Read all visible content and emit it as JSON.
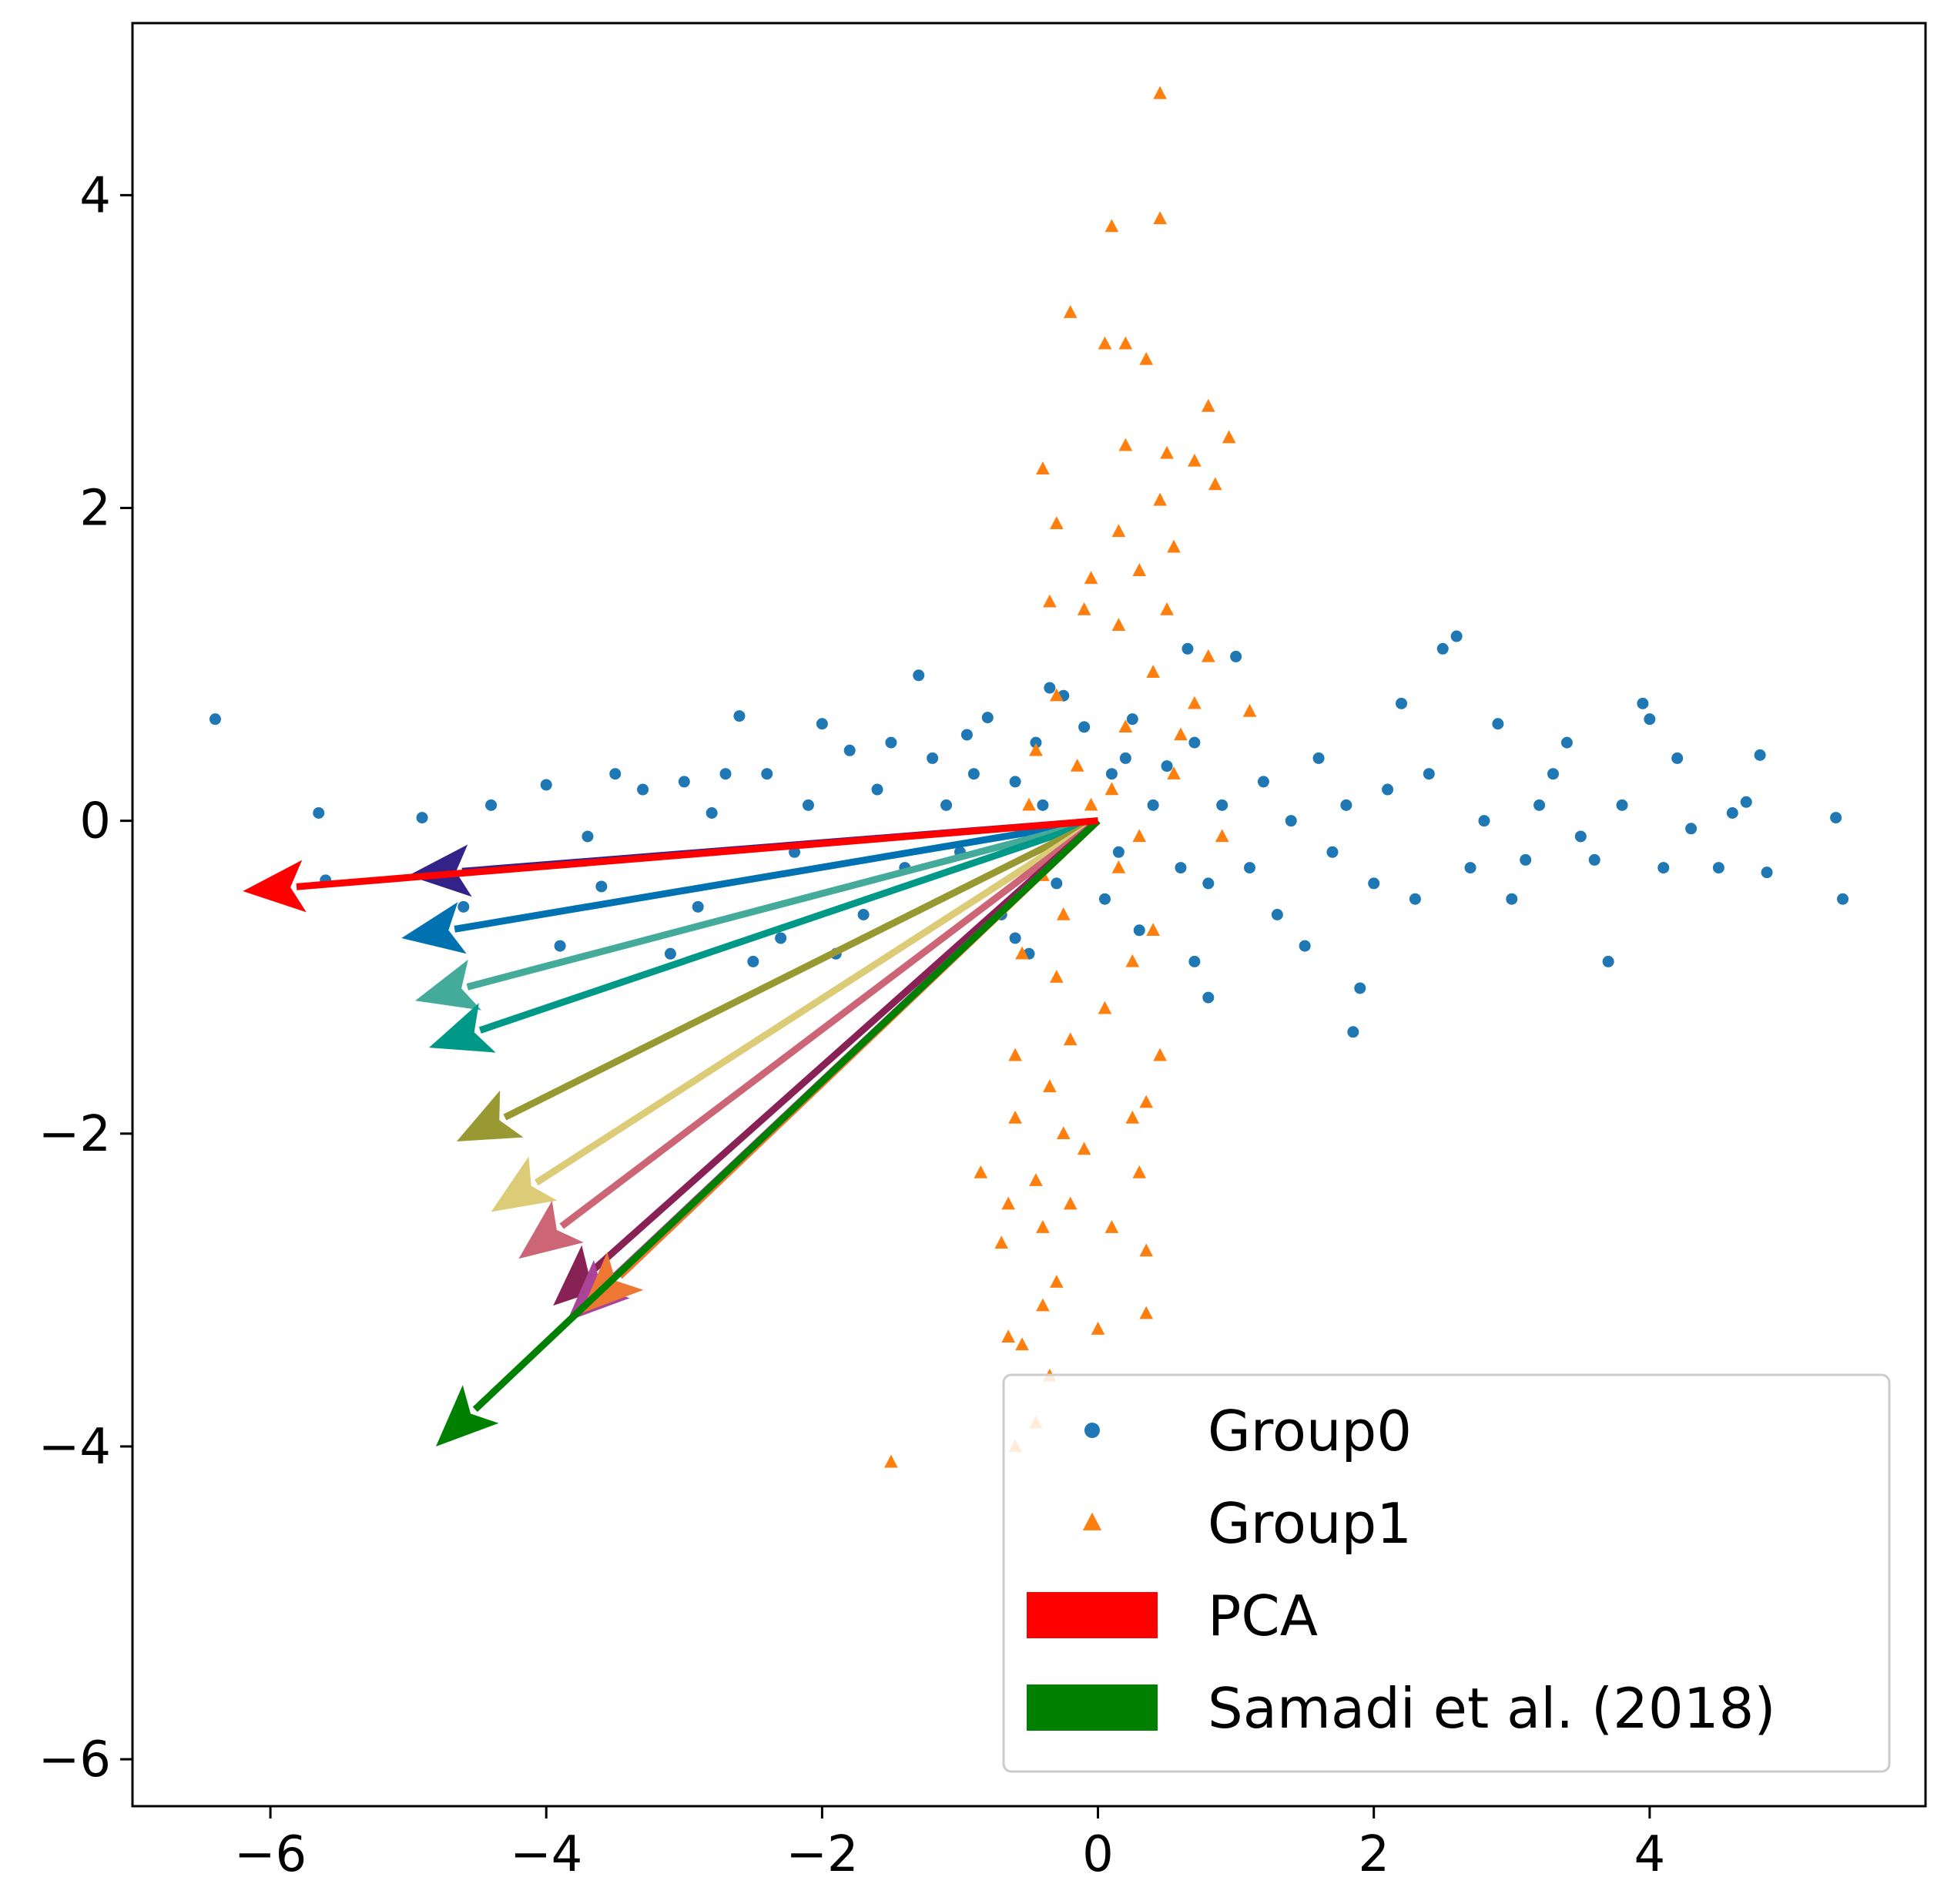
{
  "chart_data": {
    "type": "scatter",
    "title": "",
    "xlabel": "",
    "ylabel": "",
    "xlim": [
      -7.0,
      6.0
    ],
    "ylim": [
      -6.3,
      5.1
    ],
    "xticks": [
      -6,
      -4,
      -2,
      0,
      2,
      4
    ],
    "xtick_labels": [
      "−6",
      "−4",
      "−2",
      "0",
      "2",
      "4"
    ],
    "yticks": [
      -6,
      -4,
      -2,
      0,
      2,
      4
    ],
    "ytick_labels": [
      "−6",
      "−4",
      "−2",
      "0",
      "2",
      "4"
    ],
    "grid": false,
    "legend_position": "lower-right",
    "series": [
      {
        "name": "Group0",
        "kind": "scatter",
        "marker": "circle",
        "color": "#1f77b4",
        "points": [
          [
            -6.4,
            0.65
          ],
          [
            -5.65,
            0.05
          ],
          [
            -4.9,
            0.02
          ],
          [
            -4.4,
            0.1
          ],
          [
            -4.0,
            0.23
          ],
          [
            -5.6,
            -0.38
          ],
          [
            -4.6,
            -0.55
          ],
          [
            -3.6,
            -0.42
          ],
          [
            -3.3,
            0.2
          ],
          [
            -3.0,
            0.25
          ],
          [
            -2.8,
            0.05
          ],
          [
            -2.6,
            0.67
          ],
          [
            -2.4,
            0.3
          ],
          [
            -2.2,
            -0.2
          ],
          [
            -2.0,
            0.62
          ],
          [
            -1.8,
            0.45
          ],
          [
            -1.6,
            0.2
          ],
          [
            -1.4,
            -0.3
          ],
          [
            -1.3,
            0.93
          ],
          [
            -1.2,
            0.4
          ],
          [
            -1.1,
            0.1
          ],
          [
            -1.0,
            -0.2
          ],
          [
            -0.9,
            0.3
          ],
          [
            -0.8,
            0.66
          ],
          [
            -0.7,
            -0.6
          ],
          [
            -0.6,
            0.25
          ],
          [
            -0.5,
            -0.85
          ],
          [
            -0.45,
            0.5
          ],
          [
            -0.4,
            0.1
          ],
          [
            -0.3,
            -0.4
          ],
          [
            -0.25,
            0.8
          ],
          [
            -0.2,
            -0.1
          ],
          [
            -0.1,
            0.6
          ],
          [
            0.05,
            -0.5
          ],
          [
            0.1,
            0.3
          ],
          [
            0.15,
            -0.2
          ],
          [
            0.2,
            0.4
          ],
          [
            0.3,
            -0.7
          ],
          [
            0.4,
            0.1
          ],
          [
            0.5,
            0.35
          ],
          [
            0.6,
            -0.3
          ],
          [
            0.65,
            1.1
          ],
          [
            0.7,
            0.5
          ],
          [
            0.8,
            -0.4
          ],
          [
            0.9,
            0.1
          ],
          [
            1.0,
            1.05
          ],
          [
            1.1,
            -0.3
          ],
          [
            1.2,
            0.25
          ],
          [
            1.3,
            -0.6
          ],
          [
            1.4,
            0.0
          ],
          [
            1.5,
            -0.8
          ],
          [
            1.6,
            0.4
          ],
          [
            1.7,
            -0.2
          ],
          [
            1.8,
            0.1
          ],
          [
            1.85,
            -1.35
          ],
          [
            1.9,
            -1.07
          ],
          [
            2.0,
            -0.4
          ],
          [
            2.1,
            0.2
          ],
          [
            2.2,
            0.75
          ],
          [
            2.3,
            -0.5
          ],
          [
            2.4,
            0.3
          ],
          [
            2.5,
            1.1
          ],
          [
            2.6,
            1.18
          ],
          [
            2.7,
            -0.3
          ],
          [
            2.8,
            0.0
          ],
          [
            2.9,
            0.62
          ],
          [
            3.0,
            -0.5
          ],
          [
            3.1,
            -0.25
          ],
          [
            3.2,
            0.1
          ],
          [
            3.3,
            0.3
          ],
          [
            3.4,
            0.5
          ],
          [
            3.5,
            -0.1
          ],
          [
            3.6,
            -0.25
          ],
          [
            3.7,
            -0.9
          ],
          [
            3.8,
            0.1
          ],
          [
            3.95,
            0.75
          ],
          [
            4.0,
            0.65
          ],
          [
            4.1,
            -0.3
          ],
          [
            4.2,
            0.4
          ],
          [
            4.3,
            -0.05
          ],
          [
            4.5,
            -0.3
          ],
          [
            4.6,
            0.05
          ],
          [
            4.7,
            0.12
          ],
          [
            4.8,
            0.42
          ],
          [
            4.85,
            -0.33
          ],
          [
            5.35,
            0.02
          ],
          [
            5.4,
            -0.5
          ],
          [
            -3.9,
            -0.8
          ],
          [
            -3.1,
            -0.85
          ],
          [
            -2.5,
            -0.9
          ],
          [
            -2.3,
            -0.75
          ],
          [
            -1.9,
            -0.85
          ],
          [
            -1.7,
            -0.6
          ],
          [
            -0.6,
            -0.75
          ],
          [
            0.7,
            -0.9
          ],
          [
            0.8,
            -1.13
          ],
          [
            -3.7,
            -0.1
          ],
          [
            -3.5,
            0.3
          ],
          [
            -2.9,
            -0.55
          ],
          [
            -2.7,
            0.3
          ],
          [
            -2.1,
            0.1
          ],
          [
            -1.5,
            0.5
          ],
          [
            -0.95,
            0.55
          ],
          [
            -0.35,
            0.85
          ],
          [
            0.25,
            0.65
          ]
        ]
      },
      {
        "name": "Group1",
        "kind": "scatter",
        "marker": "triangle",
        "color": "#ff7f0e",
        "points": [
          [
            0.45,
            4.65
          ],
          [
            0.1,
            3.8
          ],
          [
            0.45,
            3.85
          ],
          [
            -0.2,
            3.25
          ],
          [
            0.05,
            3.05
          ],
          [
            0.2,
            3.05
          ],
          [
            0.35,
            2.95
          ],
          [
            0.8,
            2.65
          ],
          [
            0.95,
            2.45
          ],
          [
            0.2,
            2.4
          ],
          [
            -0.4,
            2.25
          ],
          [
            0.5,
            2.35
          ],
          [
            0.7,
            2.3
          ],
          [
            0.85,
            2.15
          ],
          [
            0.45,
            2.05
          ],
          [
            0.15,
            1.85
          ],
          [
            -0.3,
            1.9
          ],
          [
            0.55,
            1.75
          ],
          [
            -0.05,
            1.55
          ],
          [
            0.3,
            1.6
          ],
          [
            -0.35,
            1.4
          ],
          [
            -0.1,
            1.35
          ],
          [
            0.5,
            1.35
          ],
          [
            0.15,
            1.25
          ],
          [
            0.8,
            1.05
          ],
          [
            0.4,
            0.95
          ],
          [
            -0.3,
            0.8
          ],
          [
            0.7,
            0.75
          ],
          [
            1.1,
            0.7
          ],
          [
            0.2,
            0.6
          ],
          [
            -0.45,
            0.45
          ],
          [
            0.55,
            0.3
          ],
          [
            -0.5,
            0.1
          ],
          [
            0.3,
            -0.1
          ],
          [
            0.15,
            -0.3
          ],
          [
            -0.25,
            -0.6
          ],
          [
            0.4,
            -0.7
          ],
          [
            -0.55,
            -0.85
          ],
          [
            0.25,
            -0.9
          ],
          [
            -0.3,
            -1.0
          ],
          [
            0.05,
            -1.2
          ],
          [
            -0.2,
            -1.4
          ],
          [
            0.45,
            -1.5
          ],
          [
            -0.6,
            -1.5
          ],
          [
            -0.35,
            -1.7
          ],
          [
            0.35,
            -1.8
          ],
          [
            -0.6,
            -1.9
          ],
          [
            -0.25,
            -2.0
          ],
          [
            0.25,
            -1.9
          ],
          [
            -0.1,
            -2.1
          ],
          [
            -0.85,
            -2.25
          ],
          [
            0.3,
            -2.25
          ],
          [
            -0.45,
            -2.3
          ],
          [
            -0.65,
            -2.45
          ],
          [
            -0.2,
            -2.45
          ],
          [
            -0.4,
            -2.6
          ],
          [
            -0.7,
            -2.7
          ],
          [
            0.35,
            -2.75
          ],
          [
            0.1,
            -2.6
          ],
          [
            -0.3,
            -2.95
          ],
          [
            -0.4,
            -3.1
          ],
          [
            0.35,
            -3.15
          ],
          [
            0.0,
            -3.25
          ],
          [
            -0.65,
            -3.3
          ],
          [
            -0.55,
            -3.35
          ],
          [
            -0.35,
            -3.55
          ],
          [
            -0.45,
            -3.85
          ],
          [
            -0.6,
            -4.0
          ],
          [
            -1.5,
            -4.1
          ],
          [
            0.1,
            0.2
          ],
          [
            -0.15,
            0.35
          ],
          [
            0.6,
            0.55
          ],
          [
            -0.05,
            0.1
          ],
          [
            0.9,
            -0.1
          ],
          [
            -0.4,
            -0.35
          ]
        ]
      },
      {
        "name": "PCA",
        "kind": "arrow",
        "color": "#ff0000",
        "vector": [
          -6.2,
          -0.45
        ]
      },
      {
        "name": "Samadi et al. (2018)",
        "kind": "arrow",
        "color": "#008000",
        "vector": [
          -4.8,
          -4.0
        ]
      },
      {
        "name": "",
        "kind": "arrow",
        "color": "#332288",
        "vector": [
          -5.0,
          -0.35
        ]
      },
      {
        "name": "",
        "kind": "arrow",
        "color": "#0072b2",
        "vector": [
          -5.05,
          -0.75
        ]
      },
      {
        "name": "",
        "kind": "arrow",
        "color": "#44aa99",
        "vector": [
          -4.95,
          -1.15
        ]
      },
      {
        "name": "",
        "kind": "arrow",
        "color": "#009988",
        "vector": [
          -4.85,
          -1.45
        ]
      },
      {
        "name": "",
        "kind": "arrow",
        "color": "#999933",
        "vector": [
          -4.65,
          -2.05
        ]
      },
      {
        "name": "",
        "kind": "arrow",
        "color": "#ddcc77",
        "vector": [
          -4.4,
          -2.5
        ]
      },
      {
        "name": "",
        "kind": "arrow",
        "color": "#cc6677",
        "vector": [
          -4.2,
          -2.8
        ]
      },
      {
        "name": "",
        "kind": "arrow",
        "color": "#882255",
        "vector": [
          -3.95,
          -3.1
        ]
      },
      {
        "name": "",
        "kind": "arrow",
        "color": "#aa4499",
        "vector": [
          -3.85,
          -3.2
        ]
      },
      {
        "name": "",
        "kind": "arrow",
        "color": "#ee7733",
        "vector": [
          -3.75,
          -3.15
        ]
      }
    ],
    "legend": [
      {
        "label": "Group0",
        "symbol": "circle",
        "color": "#1f77b4"
      },
      {
        "label": "Group1",
        "symbol": "triangle",
        "color": "#ff7f0e"
      },
      {
        "label": "PCA",
        "symbol": "patch",
        "color": "#ff0000"
      },
      {
        "label": "Samadi et al. (2018)",
        "symbol": "patch",
        "color": "#008000"
      }
    ]
  }
}
